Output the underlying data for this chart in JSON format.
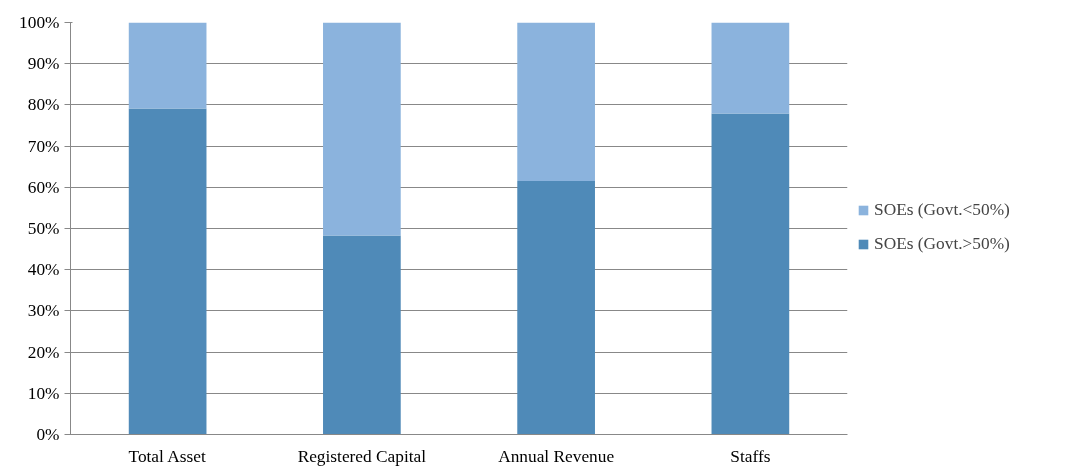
{
  "chart_data": {
    "type": "bar",
    "stacked": true,
    "categories": [
      "Total Asset",
      "Registered Capital",
      "Annual Revenue",
      "Staffs"
    ],
    "series": [
      {
        "name": "SOEs (Govt.>50%)",
        "color": "#4f8ab8",
        "values": [
          79.1,
          48.3,
          61.5,
          77.9
        ]
      },
      {
        "name": "SOEs (Govt.<50%)",
        "color": "#8bb3dd",
        "values": [
          20.9,
          51.7,
          38.5,
          22.1
        ]
      }
    ],
    "ylim": [
      0,
      100
    ],
    "yticks": [
      {
        "value": 0,
        "label": "0%"
      },
      {
        "value": 10,
        "label": "10%"
      },
      {
        "value": 20,
        "label": "20%"
      },
      {
        "value": 30,
        "label": "30%"
      },
      {
        "value": 40,
        "label": "40%"
      },
      {
        "value": 50,
        "label": "50%"
      },
      {
        "value": 60,
        "label": "60%"
      },
      {
        "value": 70,
        "label": "70%"
      },
      {
        "value": 80,
        "label": "80%"
      },
      {
        "value": 90,
        "label": "90%"
      },
      {
        "value": 100,
        "label": "100%"
      }
    ],
    "grid": "y",
    "legend": "right"
  }
}
